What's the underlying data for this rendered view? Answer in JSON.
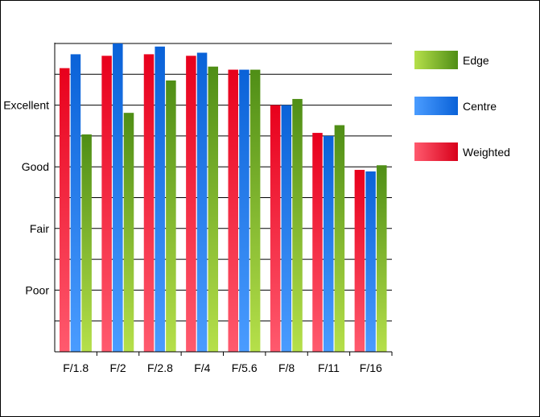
{
  "chart_data": {
    "type": "bar",
    "title": "",
    "xlabel": "",
    "ylabel": "",
    "categories": [
      "F/1.8",
      "F/2",
      "F/2.8",
      "F/4",
      "F/5.6",
      "F/8",
      "F/11",
      "F/16"
    ],
    "y_tick_labels": [
      {
        "label": "Poor",
        "value": 2
      },
      {
        "label": "Fair",
        "value": 4
      },
      {
        "label": "Good",
        "value": 6
      },
      {
        "label": "Excellent",
        "value": 8
      }
    ],
    "ylim": [
      0,
      10
    ],
    "grid": true,
    "legend_position": "right",
    "series": [
      {
        "name": "Weighted",
        "color": "#e8001c",
        "values": [
          9.2,
          9.6,
          9.65,
          9.6,
          9.15,
          8.0,
          7.1,
          5.9
        ]
      },
      {
        "name": "Centre",
        "color": "#0a6de0",
        "values": [
          9.65,
          10.0,
          9.9,
          9.7,
          9.15,
          8.0,
          7.0,
          5.85
        ]
      },
      {
        "name": "Edge",
        "color": "#5a9e1a",
        "values": [
          7.05,
          7.75,
          8.8,
          9.25,
          9.15,
          8.2,
          7.35,
          6.05
        ]
      }
    ],
    "legend_order": [
      "Edge",
      "Centre",
      "Weighted"
    ]
  }
}
